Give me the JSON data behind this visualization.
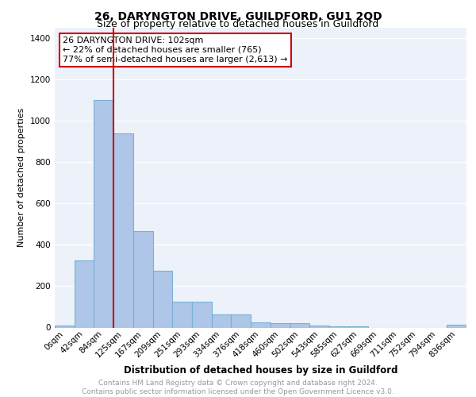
{
  "title": "26, DARYNGTON DRIVE, GUILDFORD, GU1 2QD",
  "subtitle": "Size of property relative to detached houses in Guildford",
  "xlabel": "Distribution of detached houses by size in Guildford",
  "ylabel": "Number of detached properties",
  "bar_labels": [
    "0sqm",
    "42sqm",
    "84sqm",
    "125sqm",
    "167sqm",
    "209sqm",
    "251sqm",
    "293sqm",
    "334sqm",
    "376sqm",
    "418sqm",
    "460sqm",
    "502sqm",
    "543sqm",
    "585sqm",
    "627sqm",
    "669sqm",
    "711sqm",
    "752sqm",
    "794sqm",
    "836sqm"
  ],
  "bar_values": [
    8,
    325,
    1100,
    940,
    465,
    275,
    125,
    125,
    65,
    65,
    25,
    20,
    20,
    10,
    5,
    5,
    0,
    0,
    0,
    0,
    15
  ],
  "bar_color": "#aec6e8",
  "bar_edge_color": "#7ab0d4",
  "red_line_x": 2.5,
  "ylim": [
    0,
    1450
  ],
  "yticks": [
    0,
    200,
    400,
    600,
    800,
    1000,
    1200,
    1400
  ],
  "annotation_text": "26 DARYNGTON DRIVE: 102sqm\n← 22% of detached houses are smaller (765)\n77% of semi-detached houses are larger (2,613) →",
  "annotation_box_color": "#ffffff",
  "annotation_box_edge": "#cc0000",
  "footer_line1": "Contains HM Land Registry data © Crown copyright and database right 2024.",
  "footer_line2": "Contains public sector information licensed under the Open Government Licence v3.0.",
  "background_color": "#edf2fa",
  "grid_color": "#ffffff",
  "title_fontsize": 10,
  "subtitle_fontsize": 9,
  "ylabel_fontsize": 8,
  "xlabel_fontsize": 8.5,
  "tick_fontsize": 7.5,
  "annot_fontsize": 8,
  "footer_fontsize": 6.5
}
